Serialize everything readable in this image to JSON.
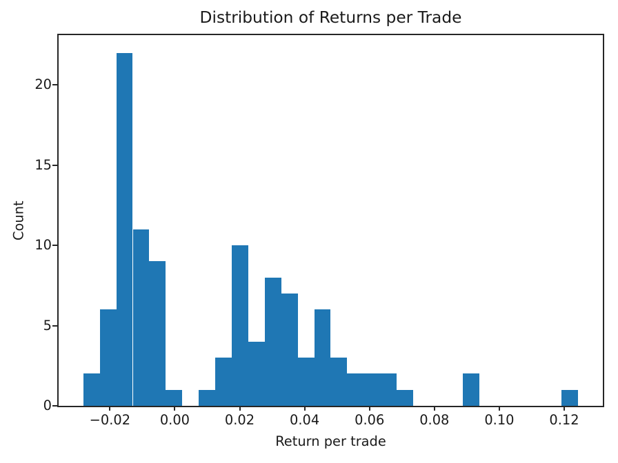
{
  "chart_data": {
    "type": "bar",
    "subtype": "histogram",
    "title": "Distribution of Returns per Trade",
    "xlabel": "Return per trade",
    "ylabel": "Count",
    "bar_color": "#1f77b4",
    "axis_color": "#262626",
    "text_color": "#1a1a1a",
    "grid": false,
    "legend": null,
    "bin_start": -0.0282,
    "bin_width": 0.0050833,
    "counts": [
      2,
      6,
      22,
      11,
      9,
      1,
      0,
      1,
      3,
      10,
      4,
      8,
      7,
      3,
      6,
      3,
      2,
      2,
      2,
      1,
      0,
      0,
      0,
      2,
      0,
      0,
      0,
      0,
      0,
      1
    ],
    "xlim": [
      -0.0358,
      0.1319
    ],
    "ylim": [
      0,
      23.1
    ],
    "xticks": [
      {
        "value": -0.02,
        "label": "−0.02"
      },
      {
        "value": 0.0,
        "label": "0.00"
      },
      {
        "value": 0.02,
        "label": "0.02"
      },
      {
        "value": 0.04,
        "label": "0.04"
      },
      {
        "value": 0.06,
        "label": "0.06"
      },
      {
        "value": 0.08,
        "label": "0.08"
      },
      {
        "value": 0.1,
        "label": "0.10"
      },
      {
        "value": 0.12,
        "label": "0.12"
      }
    ],
    "yticks": [
      {
        "value": 0,
        "label": "0"
      },
      {
        "value": 5,
        "label": "5"
      },
      {
        "value": 10,
        "label": "10"
      },
      {
        "value": 15,
        "label": "15"
      },
      {
        "value": 20,
        "label": "20"
      }
    ]
  }
}
